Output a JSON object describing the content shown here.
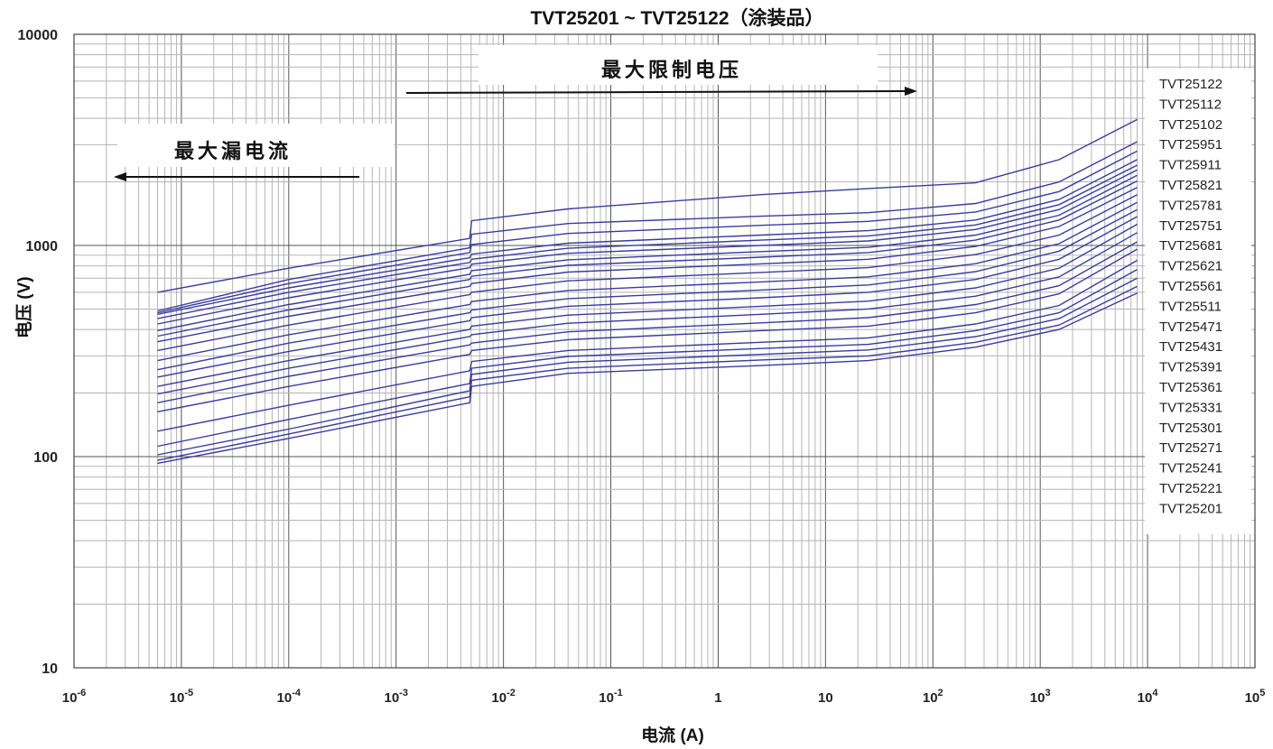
{
  "chart_data": {
    "type": "line",
    "title": "TVT25201 ~ TVT25122（涂装品）",
    "xlabel": "电流 (A)",
    "ylabel": "电压 (V)",
    "x_scale": "log",
    "y_scale": "log",
    "xlim": [
      1e-06,
      100000
    ],
    "ylim": [
      10,
      10000
    ],
    "x_tick_labels": [
      {
        "base": "10",
        "exp": "-6"
      },
      {
        "base": "10",
        "exp": "-5"
      },
      {
        "base": "10",
        "exp": "-4"
      },
      {
        "base": "10",
        "exp": "-3"
      },
      {
        "base": "10",
        "exp": "-2"
      },
      {
        "base": "10",
        "exp": "-1"
      },
      {
        "base": "1",
        "exp": ""
      },
      {
        "base": "10",
        "exp": ""
      },
      {
        "base": "10",
        "exp": "2"
      },
      {
        "base": "10",
        "exp": "3"
      },
      {
        "base": "10",
        "exp": "4"
      },
      {
        "base": "10",
        "exp": "5"
      }
    ],
    "y_tick_labels": [
      "10000",
      "1000",
      "100",
      "10"
    ],
    "grid": true,
    "annotations": [
      {
        "text": "最大限制电压",
        "arrow": "right"
      },
      {
        "text": "最大漏电流",
        "arrow": "left"
      }
    ],
    "legend_labels": [
      "TVT25122",
      "TVT25112",
      "TVT25102",
      "TVT25951",
      "TVT25911",
      "TVT25821",
      "TVT25781",
      "TVT25751",
      "TVT25681",
      "TVT25621",
      "TVT25561",
      "TVT25511",
      "TVT25471",
      "TVT25431",
      "TVT25391",
      "TVT25361",
      "TVT25331",
      "TVT25301",
      "TVT25271",
      "TVT25241",
      "TVT25221",
      "TVT25201"
    ],
    "line_color": "#3a3aa0",
    "x": [
      6e-06,
      0.0001,
      0.00485,
      0.00505,
      0.04,
      2.5,
      25,
      250,
      1500,
      8000
    ],
    "series": [
      {
        "values": [
          93,
          122,
          180,
          215,
          248,
          270,
          285,
          330,
          400,
          595
        ]
      },
      {
        "values": [
          96,
          128,
          192,
          230,
          262,
          287,
          300,
          348,
          420,
          640
        ]
      },
      {
        "values": [
          102,
          135,
          205,
          245,
          280,
          305,
          320,
          370,
          450,
          700
        ]
      },
      {
        "values": [
          112,
          150,
          222,
          262,
          298,
          325,
          340,
          395,
          480,
          770
        ]
      },
      {
        "values": [
          132,
          175,
          255,
          282,
          318,
          348,
          365,
          425,
          520,
          850
        ]
      },
      {
        "values": [
          163,
          215,
          305,
          318,
          358,
          395,
          415,
          480,
          590,
          960
        ]
      },
      {
        "values": [
          180,
          240,
          338,
          345,
          390,
          430,
          455,
          525,
          645,
          1040
        ]
      },
      {
        "values": [
          198,
          262,
          370,
          378,
          428,
          472,
          500,
          575,
          710,
          1150
        ]
      },
      {
        "values": [
          215,
          285,
          400,
          415,
          468,
          515,
          545,
          630,
          780,
          1260
        ]
      },
      {
        "values": [
          238,
          315,
          440,
          455,
          515,
          565,
          600,
          690,
          860,
          1370
        ]
      },
      {
        "values": [
          258,
          345,
          480,
          495,
          560,
          615,
          650,
          752,
          940,
          1480
        ]
      },
      {
        "values": [
          285,
          378,
          525,
          542,
          612,
          672,
          710,
          820,
          1020,
          1600
        ]
      },
      {
        "values": [
          318,
          420,
          585,
          600,
          680,
          745,
          785,
          905,
          1120,
          1740
        ]
      },
      {
        "values": [
          350,
          462,
          640,
          660,
          748,
          818,
          860,
          990,
          1230,
          1880
        ]
      },
      {
        "values": [
          372,
          495,
          690,
          715,
          805,
          880,
          925,
          1060,
          1320,
          2020
        ]
      },
      {
        "values": [
          395,
          525,
          730,
          760,
          855,
          935,
          980,
          1120,
          1390,
          2150
        ]
      },
      {
        "values": [
          425,
          565,
          785,
          815,
          918,
          1000,
          1050,
          1190,
          1480,
          2280
        ]
      },
      {
        "values": [
          450,
          600,
          830,
          860,
          970,
          1060,
          1110,
          1250,
          1560,
          2400
        ]
      },
      {
        "values": [
          472,
          630,
          875,
          910,
          1025,
          1120,
          1175,
          1320,
          1650,
          2550
        ]
      },
      {
        "values": [
          480,
          660,
          925,
          1010,
          1140,
          1245,
          1300,
          1440,
          1800,
          2800
        ]
      },
      {
        "values": [
          490,
          690,
          975,
          1130,
          1270,
          1375,
          1430,
          1580,
          2000,
          3100
        ]
      },
      {
        "values": [
          600,
          780,
          1080,
          1310,
          1490,
          1740,
          1860,
          1980,
          2550,
          3950
        ]
      }
    ]
  }
}
